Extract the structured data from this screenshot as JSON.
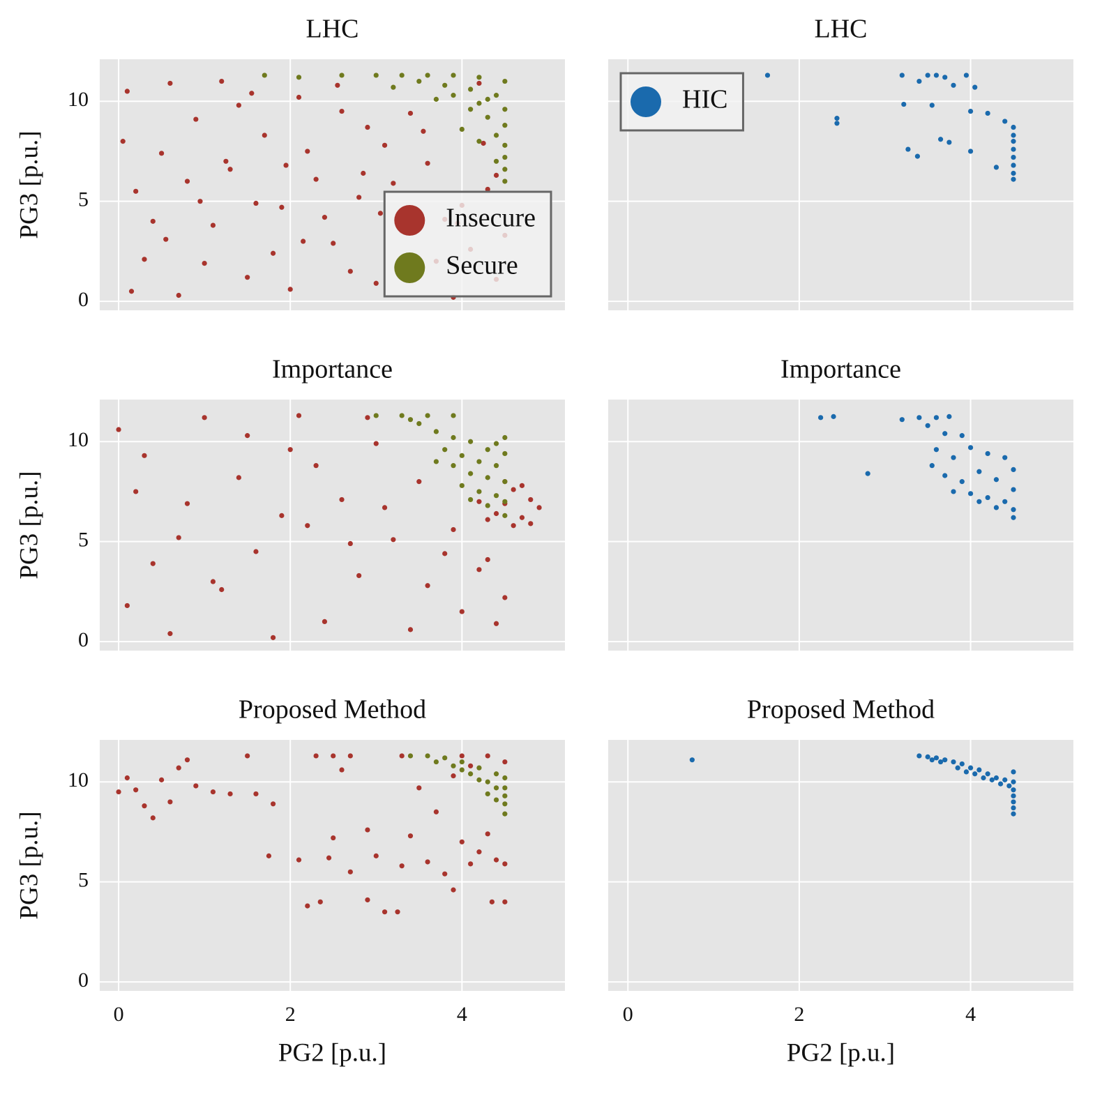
{
  "chart_data": [
    {
      "type": "scatter",
      "title": "LHC",
      "ylabel": "PG3 [p.u.]",
      "xlim": [
        -0.22,
        5.2
      ],
      "ylim": [
        -0.45,
        12.1
      ],
      "xticks": [
        0,
        2,
        4
      ],
      "yticks": [
        0,
        5,
        10
      ],
      "grid": true,
      "legend": "lower right",
      "series": [
        {
          "name": "Insecure",
          "color": "#a8342d",
          "x": [
            0.1,
            0.3,
            0.5,
            0.2,
            0.7,
            0.9,
            1.1,
            1.3,
            1.2,
            1.5,
            1.7,
            1.9,
            2.1,
            2.0,
            2.3,
            2.5,
            2.6,
            2.8,
            3.0,
            3.1,
            3.3,
            3.5,
            3.6,
            3.8,
            3.9,
            4.1,
            4.3,
            4.4,
            4.2,
            4.5,
            0.05,
            0.4,
            0.6,
            0.8,
            1.0,
            1.4,
            1.6,
            1.8,
            2.2,
            2.4,
            2.7,
            2.9,
            3.2,
            3.4,
            3.7,
            4.0,
            4.4,
            0.15,
            0.55,
            1.25,
            1.95,
            2.15,
            2.55,
            3.05,
            3.55,
            4.25,
            0.95,
            1.55,
            2.85,
            3.95
          ],
          "values": [
            10.5,
            2.1,
            7.4,
            5.5,
            0.3,
            9.1,
            3.8,
            6.6,
            11.0,
            1.2,
            8.3,
            4.7,
            10.2,
            0.6,
            6.1,
            2.9,
            9.5,
            5.2,
            0.9,
            7.8,
            3.5,
            1.6,
            6.9,
            4.1,
            0.2,
            2.6,
            5.6,
            1.1,
            10.9,
            3.3,
            8.0,
            4.0,
            10.9,
            6.0,
            1.9,
            9.8,
            4.9,
            2.4,
            7.5,
            4.2,
            1.5,
            8.7,
            5.9,
            9.4,
            2.0,
            4.8,
            6.3,
            0.5,
            3.1,
            7.0,
            6.8,
            3.0,
            10.8,
            4.4,
            8.5,
            7.9,
            5.0,
            10.4,
            6.4,
            3.9
          ]
        },
        {
          "name": "Secure",
          "color": "#6f7a1e",
          "x": [
            3.0,
            3.3,
            3.6,
            3.9,
            4.2,
            4.5,
            3.5,
            3.8,
            4.1,
            4.4,
            3.9,
            4.2,
            4.5,
            4.3,
            4.5,
            4.4,
            4.5,
            4.5,
            4.5,
            4.5,
            4.1,
            4.3,
            2.6,
            2.1,
            1.7,
            3.2,
            3.7,
            4.0,
            4.2,
            4.4
          ],
          "values": [
            11.3,
            11.3,
            11.3,
            11.3,
            11.2,
            11.0,
            11.0,
            10.8,
            10.6,
            10.3,
            10.3,
            9.9,
            9.6,
            9.2,
            8.8,
            8.3,
            7.8,
            7.2,
            6.6,
            6.0,
            9.6,
            10.1,
            11.3,
            11.2,
            11.3,
            10.7,
            10.1,
            8.6,
            8.0,
            7.0
          ]
        }
      ]
    },
    {
      "type": "scatter",
      "title": "LHC",
      "xlim": [
        -0.23,
        5.2
      ],
      "ylim": [
        -0.45,
        12.1
      ],
      "xticks": [
        0,
        2,
        4
      ],
      "yticks": [
        0,
        5,
        10
      ],
      "grid": true,
      "legend": "upper left",
      "series": [
        {
          "name": "HIC",
          "color": "#1a6aad",
          "x": [
            1.63,
            3.2,
            3.5,
            3.6,
            3.7,
            3.95,
            3.4,
            3.8,
            4.05,
            3.22,
            3.55,
            2.44,
            2.44,
            4.0,
            4.2,
            4.4,
            3.65,
            3.75,
            3.27,
            3.38,
            4.0,
            4.3,
            4.5,
            4.5,
            4.5,
            4.5,
            4.5,
            4.5,
            4.5,
            4.5
          ],
          "values": [
            11.3,
            11.3,
            11.3,
            11.3,
            11.2,
            11.3,
            11.0,
            10.8,
            10.7,
            9.85,
            9.8,
            9.15,
            8.9,
            9.5,
            9.4,
            9.0,
            8.1,
            7.95,
            7.6,
            7.25,
            7.5,
            6.7,
            8.7,
            8.3,
            8.0,
            7.6,
            7.2,
            6.8,
            6.4,
            6.1
          ]
        }
      ]
    },
    {
      "type": "scatter",
      "title": "Importance",
      "ylabel": "PG3 [p.u.]",
      "xlim": [
        -0.22,
        5.2
      ],
      "ylim": [
        -0.45,
        12.1
      ],
      "xticks": [
        0,
        2,
        4
      ],
      "yticks": [
        0,
        5,
        10
      ],
      "grid": true,
      "series": [
        {
          "color": "#a8342d",
          "x": [
            0.0,
            0.2,
            0.4,
            0.1,
            0.6,
            0.8,
            1.0,
            1.2,
            1.4,
            1.6,
            1.8,
            2.0,
            2.2,
            2.4,
            2.6,
            2.8,
            3.0,
            3.2,
            3.4,
            3.6,
            3.8,
            4.0,
            4.2,
            4.4,
            4.5,
            0.3,
            0.7,
            1.1,
            1.5,
            1.9,
            2.3,
            2.7,
            3.1,
            3.5,
            3.9,
            4.3,
            2.1,
            2.9,
            4.6,
            4.8,
            4.9,
            4.7,
            4.6,
            4.4,
            4.5,
            4.8,
            4.2,
            4.7,
            4.5,
            4.3
          ],
          "values": [
            10.6,
            7.5,
            3.9,
            1.8,
            0.4,
            6.9,
            11.2,
            2.6,
            8.2,
            4.5,
            0.2,
            9.6,
            5.8,
            1.0,
            7.1,
            3.3,
            9.9,
            5.1,
            0.6,
            2.8,
            4.4,
            1.5,
            3.6,
            0.9,
            2.2,
            9.3,
            5.2,
            3.0,
            10.3,
            6.3,
            8.8,
            4.9,
            6.7,
            8.0,
            5.6,
            4.1,
            11.3,
            11.2,
            7.6,
            7.1,
            6.7,
            6.2,
            5.8,
            6.4,
            6.9,
            5.9,
            7.0,
            7.8,
            8.0,
            6.1
          ]
        },
        {
          "color": "#6f7a1e",
          "x": [
            3.0,
            3.3,
            3.6,
            3.9,
            3.5,
            3.7,
            3.9,
            4.1,
            4.3,
            4.5,
            3.8,
            4.0,
            4.2,
            4.4,
            3.9,
            4.1,
            4.3,
            4.5,
            4.0,
            4.2,
            4.4,
            4.5,
            4.3,
            4.5,
            4.1,
            3.7,
            4.5,
            4.4,
            3.4
          ],
          "values": [
            11.3,
            11.3,
            11.3,
            11.3,
            10.9,
            10.5,
            10.2,
            10.0,
            9.6,
            9.4,
            9.6,
            9.3,
            9.0,
            8.8,
            8.8,
            8.4,
            8.2,
            8.0,
            7.8,
            7.5,
            7.3,
            7.0,
            6.8,
            6.3,
            7.1,
            9.0,
            10.2,
            9.9,
            11.1
          ]
        }
      ]
    },
    {
      "type": "scatter",
      "title": "Importance",
      "xlim": [
        -0.23,
        5.2
      ],
      "ylim": [
        -0.45,
        12.1
      ],
      "xticks": [
        0,
        2,
        4
      ],
      "yticks": [
        0,
        5,
        10
      ],
      "grid": true,
      "series": [
        {
          "color": "#1a6aad",
          "x": [
            2.25,
            2.4,
            2.8,
            3.2,
            3.4,
            3.6,
            3.75,
            3.5,
            3.7,
            3.9,
            3.6,
            3.8,
            4.0,
            4.2,
            4.4,
            3.55,
            3.7,
            3.9,
            4.1,
            4.3,
            4.5,
            3.8,
            4.0,
            4.2,
            4.4,
            4.5,
            4.5,
            4.3,
            4.1,
            4.5
          ],
          "values": [
            11.2,
            11.25,
            8.4,
            11.1,
            11.2,
            11.2,
            11.25,
            10.8,
            10.4,
            10.3,
            9.6,
            9.2,
            9.7,
            9.4,
            9.2,
            8.8,
            8.3,
            8.0,
            8.5,
            8.1,
            8.6,
            7.5,
            7.4,
            7.2,
            7.0,
            6.6,
            6.2,
            6.7,
            7.0,
            7.6
          ]
        }
      ]
    },
    {
      "type": "scatter",
      "title": "Proposed Method",
      "xlabel": "PG2 [p.u.]",
      "ylabel": "PG3 [p.u.]",
      "xlim": [
        -0.22,
        5.2
      ],
      "ylim": [
        -0.45,
        12.1
      ],
      "xticks": [
        0,
        2,
        4
      ],
      "yticks": [
        0,
        5,
        10
      ],
      "grid": true,
      "series": [
        {
          "color": "#a8342d",
          "x": [
            0.0,
            0.1,
            0.2,
            0.3,
            0.4,
            0.5,
            0.6,
            0.7,
            0.8,
            0.9,
            1.1,
            1.3,
            1.5,
            1.6,
            1.75,
            1.8,
            2.1,
            2.3,
            2.5,
            2.7,
            2.45,
            2.6,
            2.2,
            2.35,
            2.5,
            2.7,
            2.9,
            3.0,
            2.9,
            3.1,
            3.25,
            3.3,
            3.4,
            3.5,
            3.6,
            3.7,
            3.8,
            3.9,
            4.0,
            4.1,
            4.2,
            4.3,
            4.4,
            4.5,
            4.35,
            4.5,
            4.0,
            4.3,
            4.5,
            4.1,
            3.9,
            3.3
          ],
          "values": [
            9.5,
            10.2,
            9.6,
            8.8,
            8.2,
            10.1,
            9.0,
            10.7,
            11.1,
            9.8,
            9.5,
            9.4,
            11.3,
            9.4,
            6.3,
            8.9,
            6.1,
            11.3,
            11.3,
            11.3,
            6.2,
            10.6,
            3.8,
            4.0,
            7.2,
            5.5,
            7.6,
            6.3,
            4.1,
            3.5,
            3.5,
            5.8,
            7.3,
            9.7,
            6.0,
            8.5,
            5.4,
            4.6,
            7.0,
            5.9,
            6.5,
            7.4,
            6.1,
            5.9,
            4.0,
            4.0,
            11.3,
            11.3,
            11.0,
            10.8,
            10.3,
            11.3
          ]
        },
        {
          "color": "#6f7a1e",
          "x": [
            3.4,
            3.6,
            3.8,
            4.0,
            4.2,
            4.4,
            4.5,
            3.7,
            3.9,
            4.1,
            4.3,
            4.5,
            4.0,
            4.2,
            4.4,
            4.5,
            4.3,
            4.5,
            4.5,
            4.4
          ],
          "values": [
            11.3,
            11.3,
            11.2,
            11.0,
            10.7,
            10.4,
            10.2,
            11.0,
            10.8,
            10.4,
            10.0,
            9.7,
            10.6,
            10.1,
            9.7,
            9.3,
            9.4,
            8.9,
            8.4,
            9.1
          ]
        }
      ]
    },
    {
      "type": "scatter",
      "title": "Proposed Method",
      "xlabel": "PG2 [p.u.]",
      "xlim": [
        -0.23,
        5.2
      ],
      "ylim": [
        -0.45,
        12.1
      ],
      "xticks": [
        0,
        2,
        4
      ],
      "yticks": [
        0,
        5,
        10
      ],
      "grid": true,
      "series": [
        {
          "color": "#1a6aad",
          "x": [
            0.75,
            3.4,
            3.5,
            3.6,
            3.7,
            3.8,
            3.9,
            4.0,
            4.1,
            4.2,
            4.3,
            4.4,
            4.5,
            3.65,
            3.85,
            4.05,
            4.25,
            4.45,
            4.5,
            4.5,
            4.5,
            4.5,
            4.5,
            4.5,
            4.35,
            4.15,
            3.95,
            3.55
          ],
          "values": [
            11.1,
            11.3,
            11.25,
            11.2,
            11.1,
            11.0,
            10.9,
            10.7,
            10.6,
            10.4,
            10.2,
            10.1,
            10.0,
            11.0,
            10.7,
            10.4,
            10.1,
            9.8,
            10.5,
            9.6,
            9.3,
            9.0,
            8.7,
            8.4,
            9.9,
            10.2,
            10.5,
            11.1
          ]
        }
      ]
    }
  ]
}
